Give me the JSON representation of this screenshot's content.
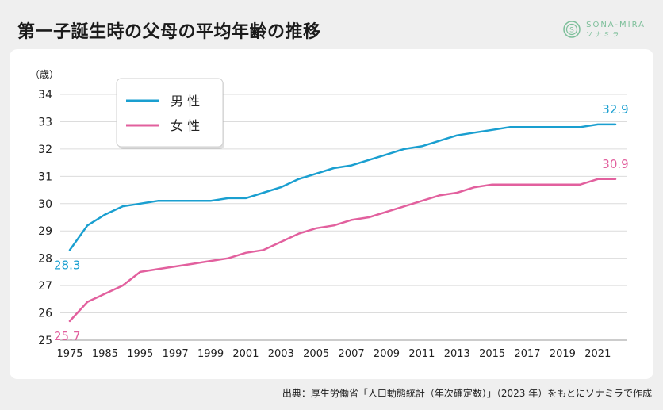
{
  "title": "第一子誕生時の父母の平均年齢の推移",
  "logo": {
    "main": "SONA-MIRA",
    "sub": "ソナミラ",
    "mark": "S",
    "color": "#7dbf9a"
  },
  "source": "出典：厚生労働省「人口動態統計（年次確定数）」（2023 年）をもとにソナミラで作成",
  "chart_data": {
    "type": "line",
    "ylabel": "（歳）",
    "ylim": [
      25,
      34
    ],
    "yticks": [
      25,
      26,
      27,
      28,
      29,
      30,
      31,
      32,
      33,
      34
    ],
    "grid": true,
    "legend_position": "top-left",
    "x": [
      "1975",
      "1980",
      "1985",
      "1990",
      "1995",
      "1996",
      "1997",
      "1998",
      "1999",
      "2000",
      "2001",
      "2002",
      "2003",
      "2004",
      "2005",
      "2006",
      "2007",
      "2008",
      "2009",
      "2010",
      "2011",
      "2012",
      "2013",
      "2014",
      "2015",
      "2016",
      "2017",
      "2018",
      "2019",
      "2020",
      "2021",
      "2022"
    ],
    "xtick_labels": [
      "1975",
      "1985",
      "1995",
      "1997",
      "1999",
      "2001",
      "2003",
      "2005",
      "2007",
      "2009",
      "2011",
      "2013",
      "2015",
      "2017",
      "2019",
      "2021"
    ],
    "xtick_indices": [
      0,
      2,
      4,
      6,
      8,
      10,
      12,
      14,
      16,
      18,
      20,
      22,
      24,
      26,
      28,
      30
    ],
    "series": [
      {
        "name": "男 性",
        "color": "#1a9fd0",
        "values": [
          28.3,
          29.2,
          29.6,
          29.9,
          30.0,
          30.1,
          30.1,
          30.1,
          30.1,
          30.2,
          30.2,
          30.4,
          30.6,
          30.9,
          31.1,
          31.3,
          31.4,
          31.6,
          31.8,
          32.0,
          32.1,
          32.3,
          32.5,
          32.6,
          32.7,
          32.8,
          32.8,
          32.8,
          32.8,
          32.8,
          32.9,
          32.9
        ],
        "start_label": "28.3",
        "end_label": "32.9"
      },
      {
        "name": "女 性",
        "color": "#e2609e",
        "values": [
          25.7,
          26.4,
          26.7,
          27.0,
          27.5,
          27.6,
          27.7,
          27.8,
          27.9,
          28.0,
          28.2,
          28.3,
          28.6,
          28.9,
          29.1,
          29.2,
          29.4,
          29.5,
          29.7,
          29.9,
          30.1,
          30.3,
          30.4,
          30.6,
          30.7,
          30.7,
          30.7,
          30.7,
          30.7,
          30.7,
          30.9,
          30.9
        ],
        "start_label": "25.7",
        "end_label": "30.9"
      }
    ]
  }
}
